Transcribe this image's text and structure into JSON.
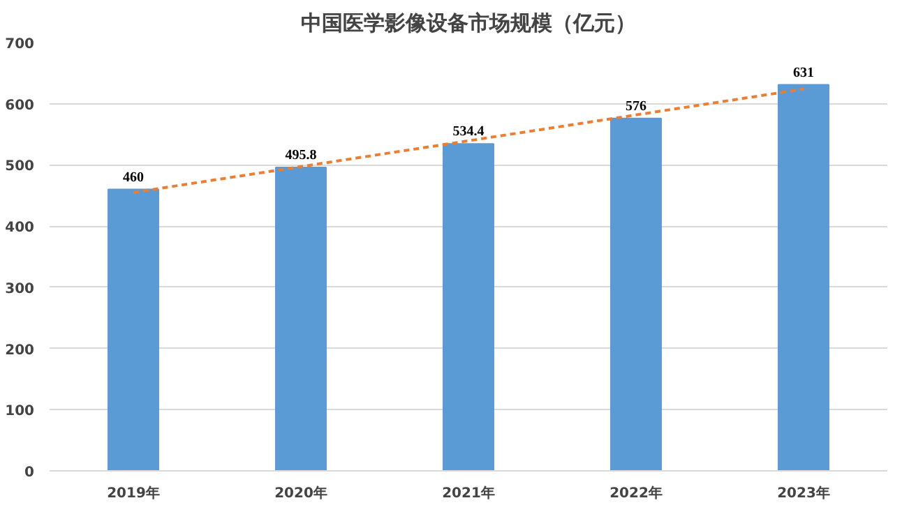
{
  "chart_data": {
    "type": "bar",
    "title": "中国医学影像设备市场规模（亿元）",
    "categories": [
      "2019年",
      "2020年",
      "2021年",
      "2022年",
      "2023年"
    ],
    "series": [
      {
        "color": "#5b9bd5",
        "values": [
          460,
          495.8,
          534.4,
          576,
          631
        ],
        "value_labels": [
          "460",
          "495.8",
          "534.4",
          "576",
          "631"
        ]
      },
      {
        "type": "line",
        "color": "#ed7d31",
        "x": [
          "2019年",
          "2023年"
        ],
        "values": [
          455,
          624
        ],
        "line_style": "dashed",
        "marker": "none"
      }
    ],
    "ylim": [
      0,
      700
    ],
    "yticks": [
      0,
      100,
      200,
      300,
      400,
      500,
      600,
      700
    ],
    "grid": "y"
  }
}
